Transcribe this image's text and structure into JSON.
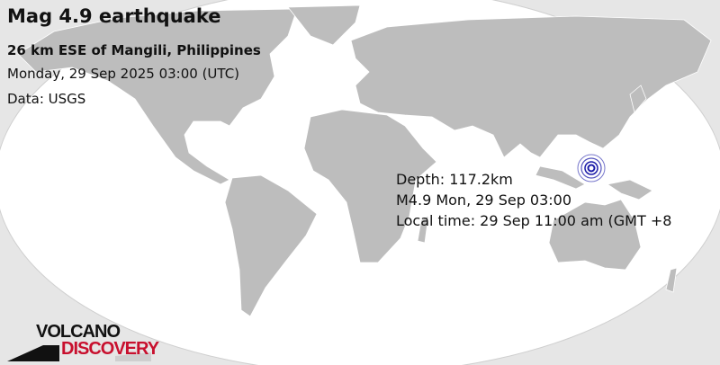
{
  "header": {
    "title": "Mag 4.9 earthquake",
    "location": "26 km ESE of Mangili, Philippines",
    "datetime": "Monday, 29 Sep 2025 03:00 (UTC)",
    "source": "Data: USGS"
  },
  "info": {
    "depth": "Depth: 117.2km",
    "magnitude_time": "M4.9 Mon, 29 Sep 03:00",
    "local_time": "Local time: 29 Sep 11:00 am (GMT +8"
  },
  "logo": {
    "line1": "VOLCANO",
    "line2": "DISCOVERY"
  },
  "colors": {
    "land": "#bdbdbd",
    "ocean": "#ffffff",
    "outside": "#e6e6e6",
    "marker": "#1a1aa8",
    "logo_red": "#c8102e"
  },
  "marker": {
    "icon": "epicenter-rings-icon"
  }
}
